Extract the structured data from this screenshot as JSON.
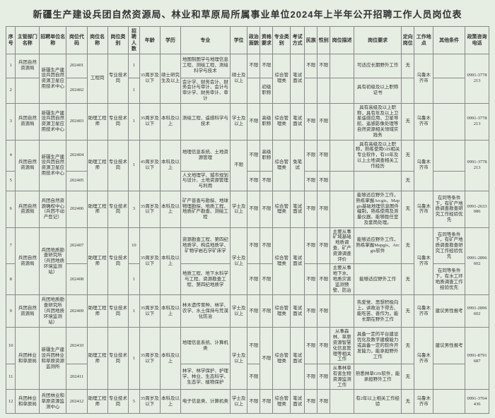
{
  "title": "新疆生产建设兵团自然资源局、林业和草原局所属事业单位2024年上半年公开招聘工作人员岗位表",
  "headers": [
    "序号",
    "主管部门名称",
    "招聘单位名称",
    "岗位代码",
    "岗位名称",
    "岗位类别",
    "招聘人数",
    "年龄",
    "学历",
    "专业",
    "学位",
    "政治面貌",
    "资格要求",
    "专业类别",
    "考试方式",
    "民族",
    "性别",
    "岗位描述",
    "岗位要求",
    "定向岗位",
    "工作地点",
    "其他条件",
    "政策咨询电话"
  ],
  "rows": [
    {
      "seq": "1",
      "dept": "兵团自然资源局",
      "unit": "新疆生产建设兵团自然资源卫星应用技术中心",
      "code": "202401",
      "pname": "工程岗",
      "ptype": "专业技术岗",
      "num": "1",
      "age": "35周岁及以下",
      "edu": "硕士研究生及以上",
      "major": "地图制图学与地理信息工程、测绘工程、测绘科学与技术",
      "degree": "硕士及以上",
      "pol": "不限",
      "qual": "不限",
      "pcat": "综合管理类",
      "exam": "笔试面试",
      "eth": "不限",
      "sex": "不限",
      "desc": "",
      "req": "可适应长期野外工作",
      "dir": "无",
      "loc": "乌鲁木齐市",
      "other": "",
      "phone": "0991-3778213"
    },
    {
      "seq": "2",
      "dept": "",
      "unit": "#ROWSPAN",
      "code": "202402",
      "pname": "#ROWSPAN",
      "ptype": "#ROWSPAN",
      "num": "1",
      "age": "#ROWSPAN",
      "edu": "#ROWSPAN",
      "major": "会计学、财务会计、财务会计与审计、会计与审计学、财务审计、审计",
      "degree": "#ROWSPAN",
      "pol": "",
      "qual": "初级职称",
      "pcat": "#ROWSPAN",
      "exam": "#ROWSPAN",
      "eth": "",
      "sex": "",
      "desc": "",
      "req": "具有初级及以上职称证书",
      "dir": "",
      "loc": "#ROWSPAN",
      "other": "",
      "phone": "#ROWSPAN"
    },
    {
      "seq": "3",
      "dept": "兵团自然资源局",
      "unit": "新疆生产建设兵团自然资源卫星应用技术中心",
      "code": "202403",
      "pname": "助理工程师",
      "ptype": "专业技术岗",
      "num": "1",
      "age": "35周岁及以下",
      "edu": "本科及以上",
      "major": "测绘工程、遥感科学与技术",
      "degree": "学士及以上",
      "pol": "不限",
      "qual": "高级职称",
      "pcat": "综合管理类",
      "exam": "笔试面试",
      "eth": "不限",
      "sex": "不限",
      "desc": "",
      "req": "具有高级及以上职称，具有年及以上卫星遥感应用、卫星导航、遥感影像处理等自然资源相关领域实践务",
      "dir": "无",
      "loc": "乌鲁木齐市",
      "other": "",
      "phone": "0991-3778213"
    },
    {
      "seq": "4",
      "dept": "兵团自然资源局",
      "unit": "新疆生产建设兵团自然资源卫星应用技术中心",
      "code": "202404",
      "pname": "助理工程师",
      "ptype": "专业技术岗",
      "num": "1",
      "age": "45周岁及以下",
      "edu": "本科及以上",
      "major": "地理信息系统、土地资源管理",
      "degree": "不限",
      "pol": "不限",
      "qual": "高级职称",
      "pcat": "综合管理类",
      "exam": "免笔试",
      "eth": "不限",
      "sex": "不限",
      "desc": "",
      "req": "具有高级及以上职称，熟练使用GIS相关专业软件，有10年及以上土地调查相关工作经历",
      "dir": "无",
      "loc": "乌鲁木齐市",
      "other": "",
      "phone": "0991-3778213"
    },
    {
      "seq": "5",
      "dept": "#ROWSPAN",
      "unit": "#ROWSPAN",
      "code": "202405",
      "pname": "#ROWSPAN",
      "ptype": "#ROWSPAN",
      "num": "#ROWSPAN",
      "age": "#ROWSPAN",
      "edu": "#ROWSPAN",
      "major": "人文地理学、城市规划与设计、土地资源管理与利用",
      "degree": "#ROWSPAN",
      "pol": "不限",
      "qual": "不限",
      "pcat": "#ROWSPAN",
      "exam": "#ROWSPAN",
      "eth": "不限",
      "sex": "不限",
      "desc": "",
      "req": "",
      "dir": "无",
      "loc": "#ROWSPAN",
      "other": "",
      "phone": "#ROWSPAN"
    },
    {
      "seq": "6",
      "dept": "兵团自然资源局",
      "unit": "兵团自然资源确权中心（兵团不动产登记）",
      "code": "202406",
      "pname": "助理工程师",
      "ptype": "专业技术岗",
      "num": "3",
      "age": "35周岁及以下",
      "edu": "本科及以上",
      "major": "矿产普查与勘探、地球物理勘探、地质工程、地质矿产勘查、测绘工程",
      "degree": "学士及以上",
      "pol": "不限",
      "qual": "不限",
      "pcat": "综合管理类",
      "exam": "笔试面试",
      "eth": "不限",
      "sex": "不限",
      "desc": "",
      "req": "能够适应野外工作，熟练掌握Arcgis、Mapgis基础地理信息图件编制，熟练使用及测量仪器，能够胜任室及套筒处理。",
      "dir": "无",
      "loc": "乌鲁木齐市",
      "other": "在同等条件下，有矿产地质调查勘查研究工作经验优先",
      "phone": "0991-2633086"
    },
    {
      "seq": "7",
      "dept": "兵团自然资源局",
      "unit": "兵团地质勘查研究所（兵团地质环境监测站）",
      "code": "202407",
      "pname": "助理工程师",
      "ptype": "专业技术岗",
      "num": "10",
      "age": "35周岁及以下",
      "edu": "本科及以上",
      "major": "资源勘查工程、第四纪地质学、构造地质学、矿物学岩石学矿床学",
      "degree": "学士及以上",
      "pol": "不限",
      "qual": "不限",
      "pcat": "综合管理类",
      "exam": "笔试面试",
      "eth": "不限",
      "sex": "不限",
      "desc": "主要从事矿域基础地质调查、矿产资源调查评价",
      "req": "能够适应野外工作，熟练掌握Mapgis、Arcgis软件",
      "dir": "无",
      "loc": "乌鲁木齐市",
      "other": "在同等条件下，有矿产地质调查勘查研究工作经验优先",
      "phone": "0991-2896602"
    },
    {
      "seq": "8",
      "dept": "#ROWSPAN",
      "unit": "#ROWSPAN",
      "code": "202408",
      "pname": "#ROWSPAN",
      "ptype": "#ROWSPAN",
      "num": "1",
      "age": "#ROWSPAN",
      "edu": "#ROWSPAN",
      "major": "地质工程、地下水科学与工程、资源勘查工程、第四纪地质学",
      "degree": "#ROWSPAN",
      "pol": "不限",
      "qual": "不限",
      "pcat": "#ROWSPAN",
      "exam": "#ROWSPAN",
      "eth": "不限",
      "sex": "不限",
      "desc": "主要从事地下水、地质灾害监测预警、防治",
      "req": "能够适应野外工作",
      "dir": "无",
      "loc": "#ROWSPAN",
      "other": "在同等条件下，有水工环地质调查工作经验优先",
      "phone": "#ROWSPAN"
    },
    {
      "seq": "9",
      "dept": "兵团自然资源局",
      "unit": "兵团地质勘查研究所（兵团地质环境监测站）",
      "code": "202409",
      "pname": "助理工程师",
      "ptype": "专业技术岗",
      "num": "1",
      "age": "35周岁及以下",
      "edu": "本科及以上",
      "major": "林木遗传育种、林学、农学、水土保持与荒漠化防治",
      "degree": "学士及以上",
      "pol": "不限",
      "qual": "不限",
      "pcat": "综合管理类",
      "exam": "笔试面试",
      "eth": "不限",
      "sex": "不限",
      "desc": "",
      "req": "热爱党、思想积极向上，讲政治下得去、能吃苦、善作为，能长期在野外工作",
      "dir": "无",
      "loc": "乌鲁木齐市",
      "other": "建议男性报考",
      "phone": "0991-2896602"
    },
    {
      "seq": "10",
      "dept": "兵团林业和草原局",
      "unit": "新疆生产建设兵团林业和草原资源监测所",
      "code": "202410",
      "pname": "助理工程师",
      "ptype": "专业技术岗",
      "num": "1",
      "age": "35周岁及以下",
      "edu": "本科及以上",
      "major": "地理信息系统、计算机类",
      "degree": "学士及以上",
      "pol": "不限",
      "qual": "不限",
      "pcat": "综合管理类",
      "exam": "笔试面试",
      "eth": "不限",
      "sex": "不限",
      "desc": "从事森林、草原资源智慧化信息管理等相关工作",
      "req": "具备一定的平台建设优化及数字建模能力或具备一定的软件开发能力，能承担野外工作",
      "dir": "无",
      "loc": "乌鲁木齐市",
      "other": "建议男性报考",
      "phone": "0991-8791687"
    },
    {
      "seq": "11",
      "dept": "#ROWSPAN",
      "unit": "#ROWSPAN",
      "code": "202411",
      "pname": "#ROWSPAN",
      "ptype": "#ROWSPAN",
      "num": "#ROWSPAN",
      "age": "#ROWSPAN",
      "edu": "#ROWSPAN",
      "major": "林学、林学保护、护理学、林业、生态科学、生态学、植物保护",
      "degree": "#ROWSPAN",
      "pol": "不限",
      "qual": "#ROWSPAN",
      "pcat": "#ROWSPAN",
      "exam": "#ROWSPAN",
      "eth": "不限",
      "sex": "不限",
      "desc": "从事林草有害生物资源监测工作",
      "req": "熟悉林草GIS软件，能承担野外工作",
      "dir": "无",
      "loc": "#ROWSPAN",
      "other": "",
      "phone": "#ROWSPAN"
    },
    {
      "seq": "12",
      "dept": "兵团林业和草原局",
      "unit": "兵团林业和草原资源监测中心",
      "code": "202412",
      "pname": "助理工程师",
      "ptype": "专业技术岗",
      "num": "5",
      "age": "35周岁及以下",
      "edu": "本科及以上",
      "major": "电子信息类、计算机类",
      "degree": "学士及以上",
      "pol": "不限",
      "qual": "不限",
      "pcat": "综合管理类",
      "exam": "笔试面试",
      "eth": "不限",
      "sex": "不限",
      "desc": "",
      "req": "有2年以上相关工作经验",
      "dir": "无",
      "loc": "乌鲁木齐市",
      "other": "",
      "phone": "0991-3764436"
    }
  ]
}
